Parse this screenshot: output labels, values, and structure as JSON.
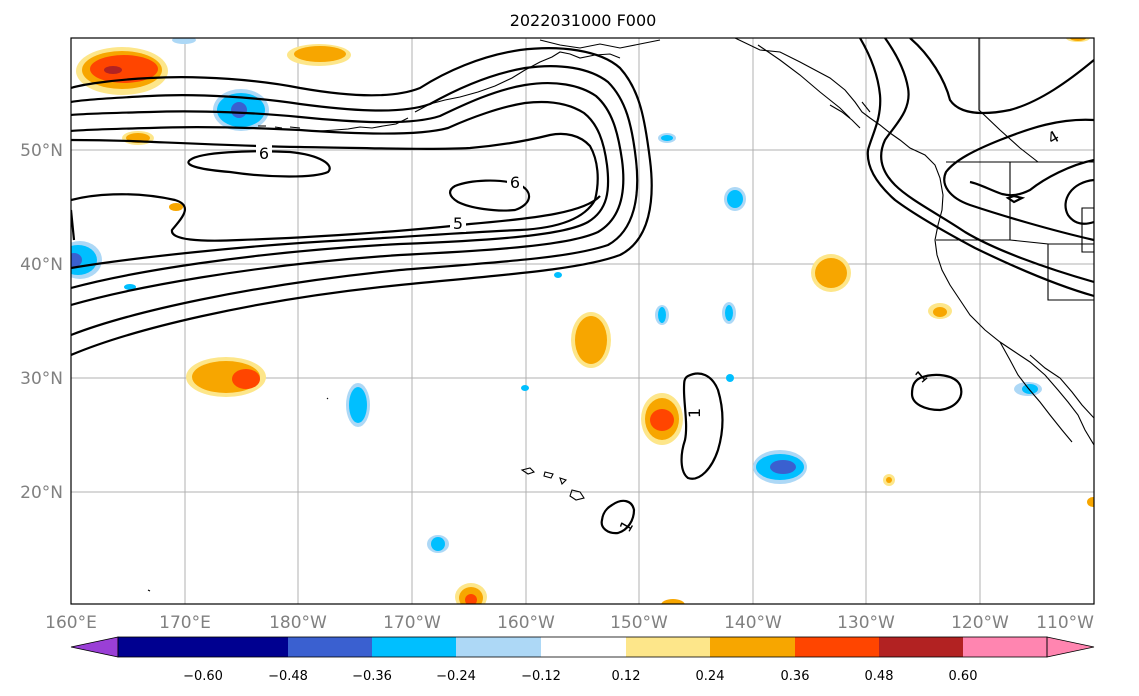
{
  "title": "2022031000 F000",
  "longitude_ticks": [
    "160°E",
    "170°E",
    "180°W",
    "170°W",
    "160°W",
    "150°W",
    "140°W",
    "130°W",
    "120°W",
    "110°W"
  ],
  "latitude_ticks": [
    "50°N",
    "40°N",
    "30°N",
    "20°N"
  ],
  "contour_labels": [
    "6",
    "6",
    "5",
    "1",
    "1",
    "1",
    "4"
  ],
  "colorbar": {
    "tick_labels": [
      "−0.60",
      "−0.48",
      "−0.36",
      "−0.24",
      "−0.12",
      "0.12",
      "0.24",
      "0.36",
      "0.48",
      "0.60"
    ],
    "colors": [
      "#9a3fd6",
      "#000090",
      "#3a60d0",
      "#00bfff",
      "#add8f6",
      "#ffffff",
      "#fde68a",
      "#f7a600",
      "#ff4500",
      "#b22222",
      "#ff85b0"
    ]
  }
}
